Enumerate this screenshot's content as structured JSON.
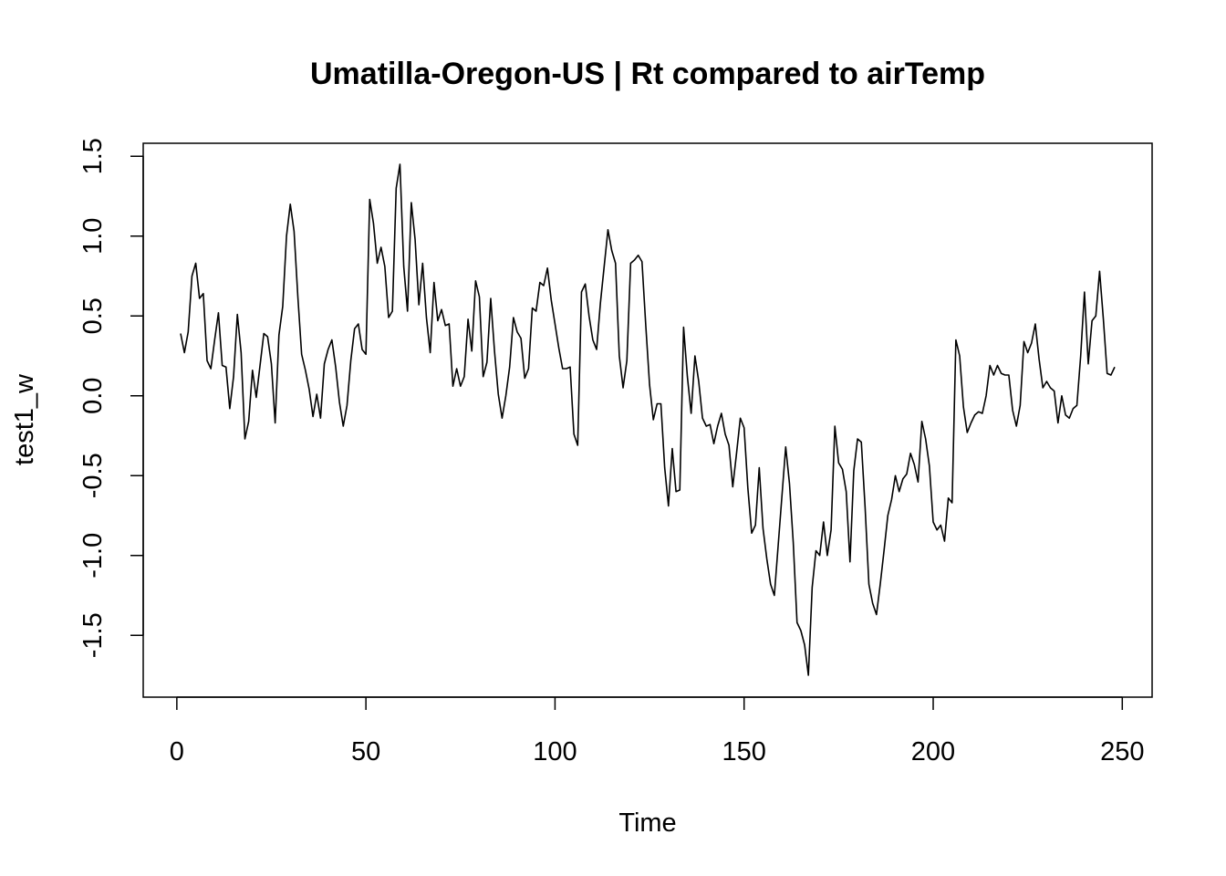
{
  "chart_data": {
    "type": "line",
    "title": "Umatilla-Oregon-US | Rt compared to airTemp",
    "xlabel": "Time",
    "ylabel": "test1_w",
    "xlim": [
      1,
      248
    ],
    "ylim": [
      -1.75,
      1.45
    ],
    "xticks": [
      0,
      50,
      100,
      150,
      200,
      250
    ],
    "yticks": [
      -1.5,
      -1.0,
      -0.5,
      0.0,
      0.5,
      1.0,
      1.5
    ],
    "xtick_labels": [
      "0",
      "50",
      "100",
      "150",
      "200",
      "250"
    ],
    "ytick_labels": [
      "-1.5",
      "-1.0",
      "-0.5",
      "0.0",
      "0.5",
      "1.0",
      "1.5"
    ],
    "grid": false,
    "legend": "none",
    "line_color": "#000000",
    "series": [
      {
        "x_start": 1,
        "x_step": 1,
        "values": [
          0.39,
          0.27,
          0.4,
          0.75,
          0.83,
          0.61,
          0.64,
          0.22,
          0.17,
          0.35,
          0.52,
          0.19,
          0.18,
          -0.08,
          0.12,
          0.51,
          0.27,
          -0.27,
          -0.16,
          0.16,
          -0.01,
          0.19,
          0.39,
          0.37,
          0.2,
          -0.17,
          0.38,
          0.56,
          1.0,
          1.2,
          1.03,
          0.62,
          0.26,
          0.16,
          0.04,
          -0.13,
          0.01,
          -0.14,
          0.2,
          0.29,
          0.35,
          0.18,
          -0.04,
          -0.19,
          -0.06,
          0.22,
          0.42,
          0.45,
          0.29,
          0.26,
          1.23,
          1.08,
          0.83,
          0.93,
          0.81,
          0.49,
          0.53,
          1.3,
          1.45,
          0.81,
          0.53,
          1.21,
          0.98,
          0.57,
          0.83,
          0.49,
          0.27,
          0.71,
          0.47,
          0.54,
          0.44,
          0.45,
          0.06,
          0.17,
          0.06,
          0.12,
          0.48,
          0.28,
          0.72,
          0.62,
          0.12,
          0.21,
          0.61,
          0.28,
          0.01,
          -0.14,
          0.0,
          0.18,
          0.49,
          0.4,
          0.36,
          0.11,
          0.17,
          0.55,
          0.53,
          0.71,
          0.69,
          0.8,
          0.6,
          0.45,
          0.3,
          0.17,
          0.17,
          0.18,
          -0.24,
          -0.31,
          0.65,
          0.7,
          0.5,
          0.35,
          0.29,
          0.58,
          0.81,
          1.04,
          0.91,
          0.83,
          0.25,
          0.05,
          0.22,
          0.83,
          0.85,
          0.88,
          0.84,
          0.44,
          0.07,
          -0.15,
          -0.05,
          -0.05,
          -0.45,
          -0.69,
          -0.33,
          -0.6,
          -0.59,
          0.43,
          0.12,
          -0.11,
          0.25,
          0.09,
          -0.14,
          -0.19,
          -0.18,
          -0.3,
          -0.19,
          -0.11,
          -0.24,
          -0.31,
          -0.57,
          -0.36,
          -0.14,
          -0.2,
          -0.58,
          -0.86,
          -0.81,
          -0.45,
          -0.83,
          -1.02,
          -1.18,
          -1.25,
          -0.94,
          -0.63,
          -0.32,
          -0.55,
          -0.92,
          -1.42,
          -1.47,
          -1.56,
          -1.75,
          -1.2,
          -0.97,
          -1.0,
          -0.79,
          -1.0,
          -0.84,
          -0.19,
          -0.42,
          -0.46,
          -0.6,
          -1.04,
          -0.47,
          -0.27,
          -0.29,
          -0.7,
          -1.18,
          -1.3,
          -1.37,
          -1.18,
          -0.97,
          -0.75,
          -0.65,
          -0.5,
          -0.6,
          -0.52,
          -0.49,
          -0.36,
          -0.43,
          -0.54,
          -0.16,
          -0.27,
          -0.44,
          -0.79,
          -0.84,
          -0.81,
          -0.91,
          -0.64,
          -0.67,
          0.35,
          0.25,
          -0.07,
          -0.23,
          -0.17,
          -0.12,
          -0.1,
          -0.11,
          0.0,
          0.19,
          0.13,
          0.19,
          0.14,
          0.13,
          0.13,
          -0.09,
          -0.19,
          -0.06,
          0.34,
          0.27,
          0.33,
          0.45,
          0.23,
          0.05,
          0.09,
          0.05,
          0.03,
          -0.17,
          0.0,
          -0.12,
          -0.14,
          -0.08,
          -0.06,
          0.25,
          0.65,
          0.2,
          0.47,
          0.5,
          0.78,
          0.48,
          0.14,
          0.13,
          0.18
        ]
      }
    ]
  }
}
